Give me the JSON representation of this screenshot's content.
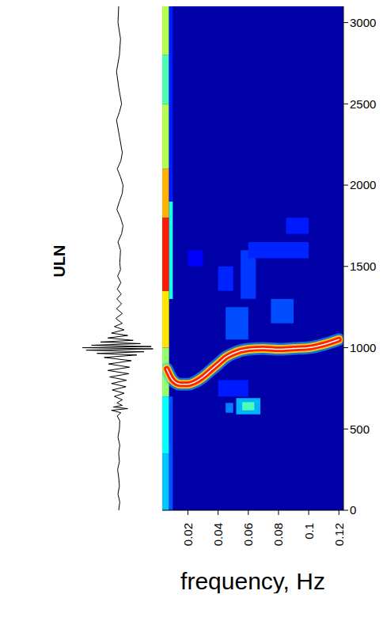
{
  "chart_data": [
    {
      "type": "line",
      "title": "ULN",
      "color": "#000000",
      "tick_labels": false,
      "xlim": [
        0,
        3100
      ],
      "ylim": [
        -1.05,
        1.05
      ],
      "x": [
        0,
        50,
        100,
        150,
        200,
        250,
        300,
        350,
        400,
        450,
        500,
        550,
        580,
        600,
        615,
        625,
        635,
        645,
        660,
        680,
        700,
        720,
        740,
        760,
        780,
        800,
        820,
        840,
        860,
        880,
        900,
        920,
        940,
        955,
        965,
        975,
        985,
        993,
        1000,
        1007,
        1015,
        1025,
        1035,
        1045,
        1060,
        1075,
        1090,
        1110,
        1130,
        1150,
        1180,
        1210,
        1240,
        1270,
        1300,
        1330,
        1360,
        1400,
        1440,
        1480,
        1520,
        1560,
        1600,
        1650,
        1700,
        1750,
        1800,
        1850,
        1900,
        1950,
        2000,
        2050,
        2100,
        2150,
        2200,
        2300,
        2400,
        2450,
        2500,
        2600,
        2700,
        2800,
        2900,
        3000,
        3100
      ],
      "values": [
        0,
        0.03,
        -0.02,
        0.02,
        0,
        -0.03,
        0.02,
        0,
        0.03,
        -0.02,
        0.02,
        0.03,
        -0.04,
        0.06,
        -0.2,
        0.25,
        -0.15,
        0.1,
        -0.05,
        0.1,
        -0.12,
        0.15,
        -0.18,
        0.2,
        -0.2,
        0.22,
        -0.25,
        0.28,
        -0.3,
        0.3,
        -0.28,
        0.35,
        -0.4,
        0.5,
        -0.6,
        0.7,
        -0.9,
        0.95,
        -1.0,
        0.9,
        -0.75,
        0.6,
        -0.5,
        0.4,
        -0.3,
        0.25,
        -0.2,
        0.15,
        -0.12,
        0.1,
        -0.08,
        0.1,
        -0.06,
        0.08,
        -0.05,
        0.07,
        -0.04,
        0.06,
        -0.03,
        0.05,
        0.03,
        0.04,
        0.05,
        -0.02,
        0.08,
        0.12,
        0.05,
        -0.05,
        0.02,
        0.1,
        0.12,
        0.05,
        -0.04,
        0.06,
        0.1,
        0.02,
        -0.06,
        0.02,
        0.08,
        0,
        -0.06,
        0.02,
        0.05,
        -0.02,
        0
      ]
    },
    {
      "type": "heatmap",
      "xlabel": "frequency, Hz",
      "xlim": [
        0.003,
        0.123
      ],
      "xticks": [
        0.02,
        0.04,
        0.06,
        0.08,
        0.1,
        0.12
      ],
      "ylim": [
        0,
        3100
      ],
      "yticks": [
        0,
        500,
        1000,
        1500,
        2000,
        2500,
        3000
      ],
      "color_range": [
        0,
        10
      ],
      "cells": [
        {
          "x": [
            0.003,
            0.123
          ],
          "y": [
            0,
            3100
          ],
          "value": 0.4
        },
        {
          "x": [
            0.003,
            0.0075
          ],
          "y": [
            0,
            350
          ],
          "value": 3.2
        },
        {
          "x": [
            0.003,
            0.0075
          ],
          "y": [
            350,
            700
          ],
          "value": 3.8
        },
        {
          "x": [
            0.003,
            0.0075
          ],
          "y": [
            700,
            1000
          ],
          "value": 5.2
        },
        {
          "x": [
            0.003,
            0.0075
          ],
          "y": [
            1000,
            1350
          ],
          "value": 6.5
        },
        {
          "x": [
            0.003,
            0.0075
          ],
          "y": [
            1350,
            1800
          ],
          "value": 8.5
        },
        {
          "x": [
            0.003,
            0.0075
          ],
          "y": [
            1800,
            2100
          ],
          "value": 7.0
        },
        {
          "x": [
            0.003,
            0.0075
          ],
          "y": [
            2100,
            2500
          ],
          "value": 5.5
        },
        {
          "x": [
            0.003,
            0.0075
          ],
          "y": [
            2500,
            2800
          ],
          "value": 4.5
        },
        {
          "x": [
            0.003,
            0.0075
          ],
          "y": [
            2800,
            3100
          ],
          "value": 5.5
        },
        {
          "x": [
            0.0075,
            0.01
          ],
          "y": [
            0,
            700
          ],
          "value": 2.0
        },
        {
          "x": [
            0.0075,
            0.01
          ],
          "y": [
            1300,
            1900
          ],
          "value": 4.0
        },
        {
          "x": [
            0.0075,
            0.01
          ],
          "y": [
            1900,
            3100
          ],
          "value": 1.5
        },
        {
          "x": [
            0.052,
            0.068
          ],
          "y": [
            590,
            690
          ],
          "value": 3.0
        },
        {
          "x": [
            0.056,
            0.064
          ],
          "y": [
            615,
            665
          ],
          "value": 4.5
        },
        {
          "x": [
            0.045,
            0.05
          ],
          "y": [
            600,
            660
          ],
          "value": 2.5
        },
        {
          "x": [
            0.04,
            0.06
          ],
          "y": [
            700,
            800
          ],
          "value": 1.5
        },
        {
          "x": [
            0.045,
            0.06
          ],
          "y": [
            1050,
            1250
          ],
          "value": 2.0
        },
        {
          "x": [
            0.055,
            0.065
          ],
          "y": [
            1300,
            1600
          ],
          "value": 1.8
        },
        {
          "x": [
            0.075,
            0.09
          ],
          "y": [
            1150,
            1300
          ],
          "value": 2.0
        },
        {
          "x": [
            0.06,
            0.1
          ],
          "y": [
            1550,
            1650
          ],
          "value": 1.6
        },
        {
          "x": [
            0.04,
            0.05
          ],
          "y": [
            1350,
            1500
          ],
          "value": 1.6
        },
        {
          "x": [
            0.085,
            0.1
          ],
          "y": [
            1700,
            1800
          ],
          "value": 1.5
        },
        {
          "x": [
            0.02,
            0.03
          ],
          "y": [
            1500,
            1600
          ],
          "value": 1.2
        }
      ],
      "ridge": {
        "color": "#ff2000",
        "x": [
          0.006,
          0.01,
          0.015,
          0.02,
          0.025,
          0.03,
          0.035,
          0.04,
          0.045,
          0.05,
          0.06,
          0.07,
          0.08,
          0.09,
          0.1,
          0.11,
          0.12
        ],
        "y": [
          870,
          800,
          775,
          775,
          790,
          820,
          860,
          900,
          940,
          965,
          990,
          995,
          990,
          995,
          1000,
          1020,
          1050
        ]
      }
    }
  ]
}
